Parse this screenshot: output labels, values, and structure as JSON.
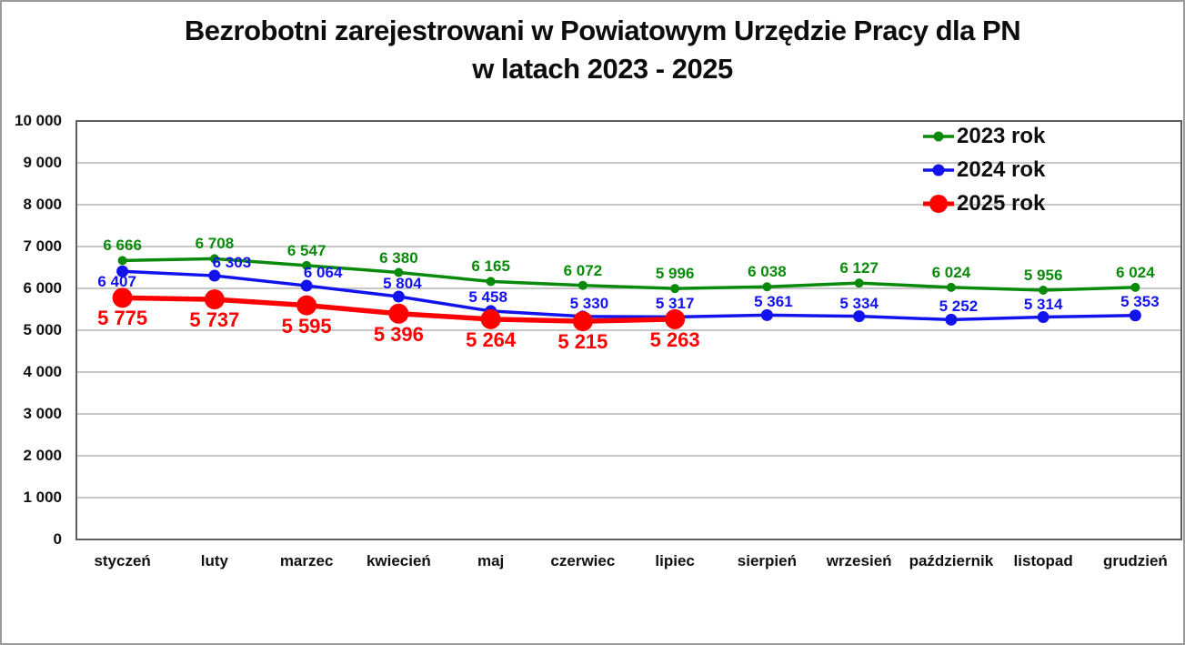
{
  "title": {
    "line1": "Bezrobotni zarejestrowani w Powiatowym Urzędzie Pracy dla PN",
    "line2": "w latach 2023 - 2025"
  },
  "chart_data": {
    "type": "line",
    "categories": [
      "styczeń",
      "luty",
      "marzec",
      "kwiecień",
      "maj",
      "czerwiec",
      "lipiec",
      "sierpień",
      "wrzesień",
      "październik",
      "listopad",
      "grudzień"
    ],
    "series": [
      {
        "name": "2023 rok",
        "color": "#0a8a0a",
        "values": [
          6666,
          6708,
          6547,
          6380,
          6165,
          6072,
          5996,
          6038,
          6127,
          6024,
          5956,
          6024
        ]
      },
      {
        "name": "2024 rok",
        "color": "#1212ee",
        "values": [
          6407,
          6303,
          6064,
          5804,
          5458,
          5330,
          5317,
          5361,
          5334,
          5252,
          5314,
          5353
        ]
      },
      {
        "name": "2025 rok",
        "color": "#fe0000",
        "values": [
          5775,
          5737,
          5595,
          5396,
          5264,
          5215,
          5263
        ]
      }
    ],
    "ylim": [
      0,
      10000
    ],
    "ytick_step": 1000,
    "ytick_labels": [
      "0",
      "1 000",
      "2 000",
      "3 000",
      "4 000",
      "5 000",
      "6 000",
      "7 000",
      "8 000",
      "9 000",
      "10 000"
    ],
    "grid": true,
    "legend_position": "top-right",
    "data_labels": "on",
    "gridline_color": "#a8a8a8",
    "axis_color": "#5f5f5f"
  }
}
